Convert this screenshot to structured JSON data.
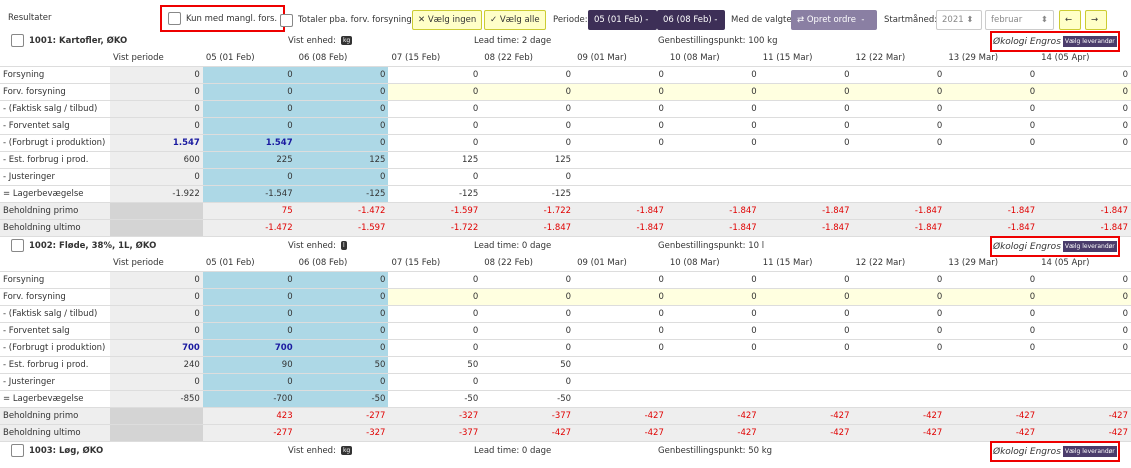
{
  "toolbar": {
    "title": "Resultater",
    "only_missing": "Kun med mangl. fors.",
    "totals": "Totaler pba. forv. forsyning",
    "select_none": "Vælg ingen",
    "select_all": "Vælg alle",
    "period_label": "Periode:",
    "period_from": "05 (01 Feb)",
    "period_to": "06 (08 Feb)",
    "with_selected": "Med de valgte:",
    "create_order": "Opret ordre",
    "start_month_label": "Startmåned:",
    "start_year": "2021",
    "start_month": "februar"
  },
  "columns": [
    "Vist periode",
    "05 (01 Feb)",
    "06 (08 Feb)",
    "07 (15 Feb)",
    "08 (22 Feb)",
    "09 (01 Mar)",
    "10 (08 Mar)",
    "11 (15 Mar)",
    "12 (22 Mar)",
    "13 (29 Mar)",
    "14 (05 Apr)"
  ],
  "products": [
    {
      "name": "1001: Kartofler, ØKO",
      "unit_label": "Vist enhed:",
      "unit": "kg",
      "lead_time": "Lead time: 2 dage",
      "reorder_point": "Genbestillingspunkt: 100 kg",
      "supplier": "Økologi Engros",
      "choose_supplier": "Vælg leverandør",
      "rows": [
        {
          "label": "Forsyning",
          "cells": [
            "0",
            "0",
            "0",
            "0",
            "0",
            "0",
            "0",
            "0",
            "0",
            "0",
            "0"
          ]
        },
        {
          "label": "Forv. forsyning",
          "cells": [
            "0",
            "0",
            "0",
            "0",
            "0",
            "0",
            "0",
            "0",
            "0",
            "0",
            "0"
          ]
        },
        {
          "label": "- (Faktisk salg / tilbud)",
          "cells": [
            "0",
            "0",
            "0",
            "0",
            "0",
            "0",
            "0",
            "0",
            "0",
            "0",
            "0"
          ]
        },
        {
          "label": "- Forventet salg",
          "cells": [
            "0",
            "0",
            "0",
            "0",
            "0",
            "0",
            "0",
            "0",
            "0",
            "0",
            "0"
          ]
        },
        {
          "label": "- (Forbrugt i produktion)",
          "cells": [
            "1.547",
            "1.547",
            "0",
            "0",
            "0",
            "0",
            "0",
            "0",
            "0",
            "0",
            "0"
          ]
        },
        {
          "label": "- Est. forbrug i prod.",
          "cells": [
            "600",
            "225",
            "125",
            "125",
            "125",
            null,
            null,
            null,
            null,
            null,
            null
          ]
        },
        {
          "label": "- Justeringer",
          "cells": [
            "0",
            "0",
            "0",
            "0",
            "0",
            null,
            null,
            null,
            null,
            null,
            null
          ]
        },
        {
          "label": "= Lagerbevægelse",
          "cells": [
            "-1.922",
            "-1.547",
            "-125",
            "-125",
            "-125",
            null,
            null,
            null,
            null,
            null,
            null
          ]
        },
        {
          "label": "Beholdning primo",
          "cells": [
            null,
            "75",
            "-1.472",
            "-1.597",
            "-1.722",
            "-1.847",
            "-1.847",
            "-1.847",
            "-1.847",
            "-1.847",
            "-1.847"
          ]
        },
        {
          "label": "Beholdning ultimo",
          "cells": [
            null,
            "-1.472",
            "-1.597",
            "-1.722",
            "-1.847",
            "-1.847",
            "-1.847",
            "-1.847",
            "-1.847",
            "-1.847",
            "-1.847"
          ]
        }
      ]
    },
    {
      "name": "1002: Fløde, 38%, 1L, ØKO",
      "unit_label": "Vist enhed:",
      "unit": "l",
      "lead_time": "Lead time: 0 dage",
      "reorder_point": "Genbestillingspunkt: 10 l",
      "supplier": "Økologi Engros",
      "choose_supplier": "Vælg leverandør",
      "rows": [
        {
          "label": "Forsyning",
          "cells": [
            "0",
            "0",
            "0",
            "0",
            "0",
            "0",
            "0",
            "0",
            "0",
            "0",
            "0"
          ]
        },
        {
          "label": "Forv. forsyning",
          "cells": [
            "0",
            "0",
            "0",
            "0",
            "0",
            "0",
            "0",
            "0",
            "0",
            "0",
            "0"
          ]
        },
        {
          "label": "- (Faktisk salg / tilbud)",
          "cells": [
            "0",
            "0",
            "0",
            "0",
            "0",
            "0",
            "0",
            "0",
            "0",
            "0",
            "0"
          ]
        },
        {
          "label": "- Forventet salg",
          "cells": [
            "0",
            "0",
            "0",
            "0",
            "0",
            "0",
            "0",
            "0",
            "0",
            "0",
            "0"
          ]
        },
        {
          "label": "- (Forbrugt i produktion)",
          "cells": [
            "700",
            "700",
            "0",
            "0",
            "0",
            "0",
            "0",
            "0",
            "0",
            "0",
            "0"
          ]
        },
        {
          "label": "- Est. forbrug i prod.",
          "cells": [
            "240",
            "90",
            "50",
            "50",
            "50",
            null,
            null,
            null,
            null,
            null,
            null
          ]
        },
        {
          "label": "- Justeringer",
          "cells": [
            "0",
            "0",
            "0",
            "0",
            "0",
            null,
            null,
            null,
            null,
            null,
            null
          ]
        },
        {
          "label": "= Lagerbevægelse",
          "cells": [
            "-850",
            "-700",
            "-50",
            "-50",
            "-50",
            null,
            null,
            null,
            null,
            null,
            null
          ]
        },
        {
          "label": "Beholdning primo",
          "cells": [
            null,
            "423",
            "-277",
            "-327",
            "-377",
            "-427",
            "-427",
            "-427",
            "-427",
            "-427",
            "-427"
          ]
        },
        {
          "label": "Beholdning ultimo",
          "cells": [
            null,
            "-277",
            "-327",
            "-377",
            "-427",
            "-427",
            "-427",
            "-427",
            "-427",
            "-427",
            "-427"
          ]
        }
      ]
    },
    {
      "name": "1003: Løg, ØKO",
      "unit_label": "Vist enhed:",
      "unit": "kg",
      "lead_time": "Lead time: 0 dage",
      "reorder_point": "Genbestillingspunkt: 50 kg",
      "supplier": "Økologi Engros",
      "choose_supplier": "Vælg leverandør",
      "rows": []
    }
  ]
}
